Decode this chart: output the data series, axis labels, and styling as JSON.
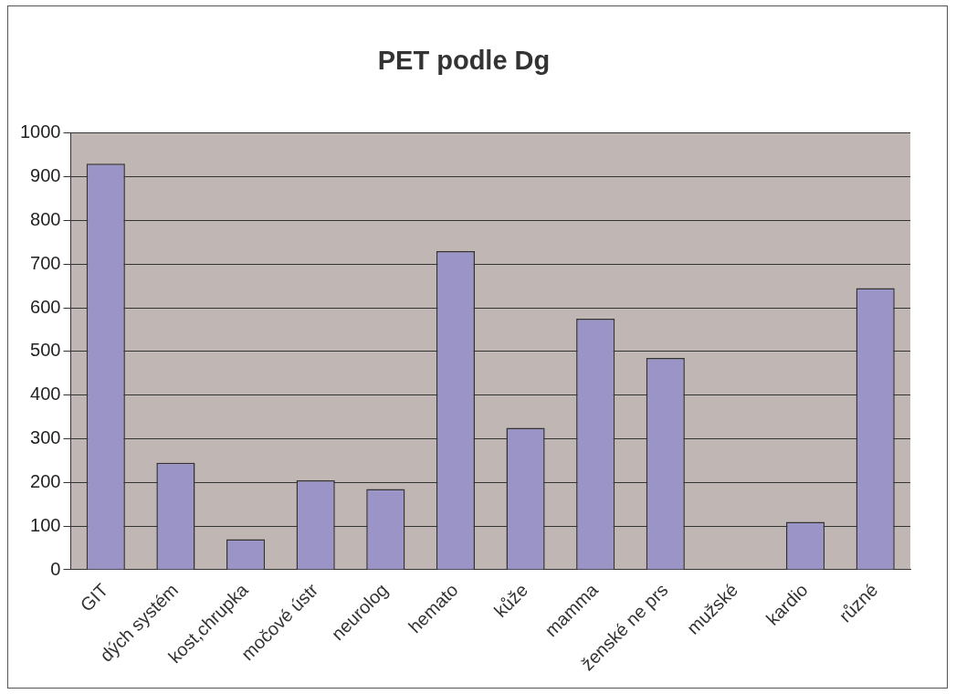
{
  "chart_data": {
    "type": "bar",
    "title": "PET podle Dg",
    "categories": [
      "GIT",
      "dých systém",
      "kost,chrupka",
      "močové ústr",
      "neurolog",
      "hemato",
      "kůže",
      "mamma",
      "ženské ne prs",
      "mužské",
      "kardio",
      "různé"
    ],
    "values": [
      930,
      245,
      70,
      205,
      185,
      730,
      325,
      575,
      485,
      0,
      110,
      645
    ],
    "color": "#9a94c7",
    "ylim": [
      0,
      1000
    ],
    "yticks": [
      0,
      100,
      200,
      300,
      400,
      500,
      600,
      700,
      800,
      900,
      1000
    ],
    "grid": "y",
    "legend": false
  }
}
